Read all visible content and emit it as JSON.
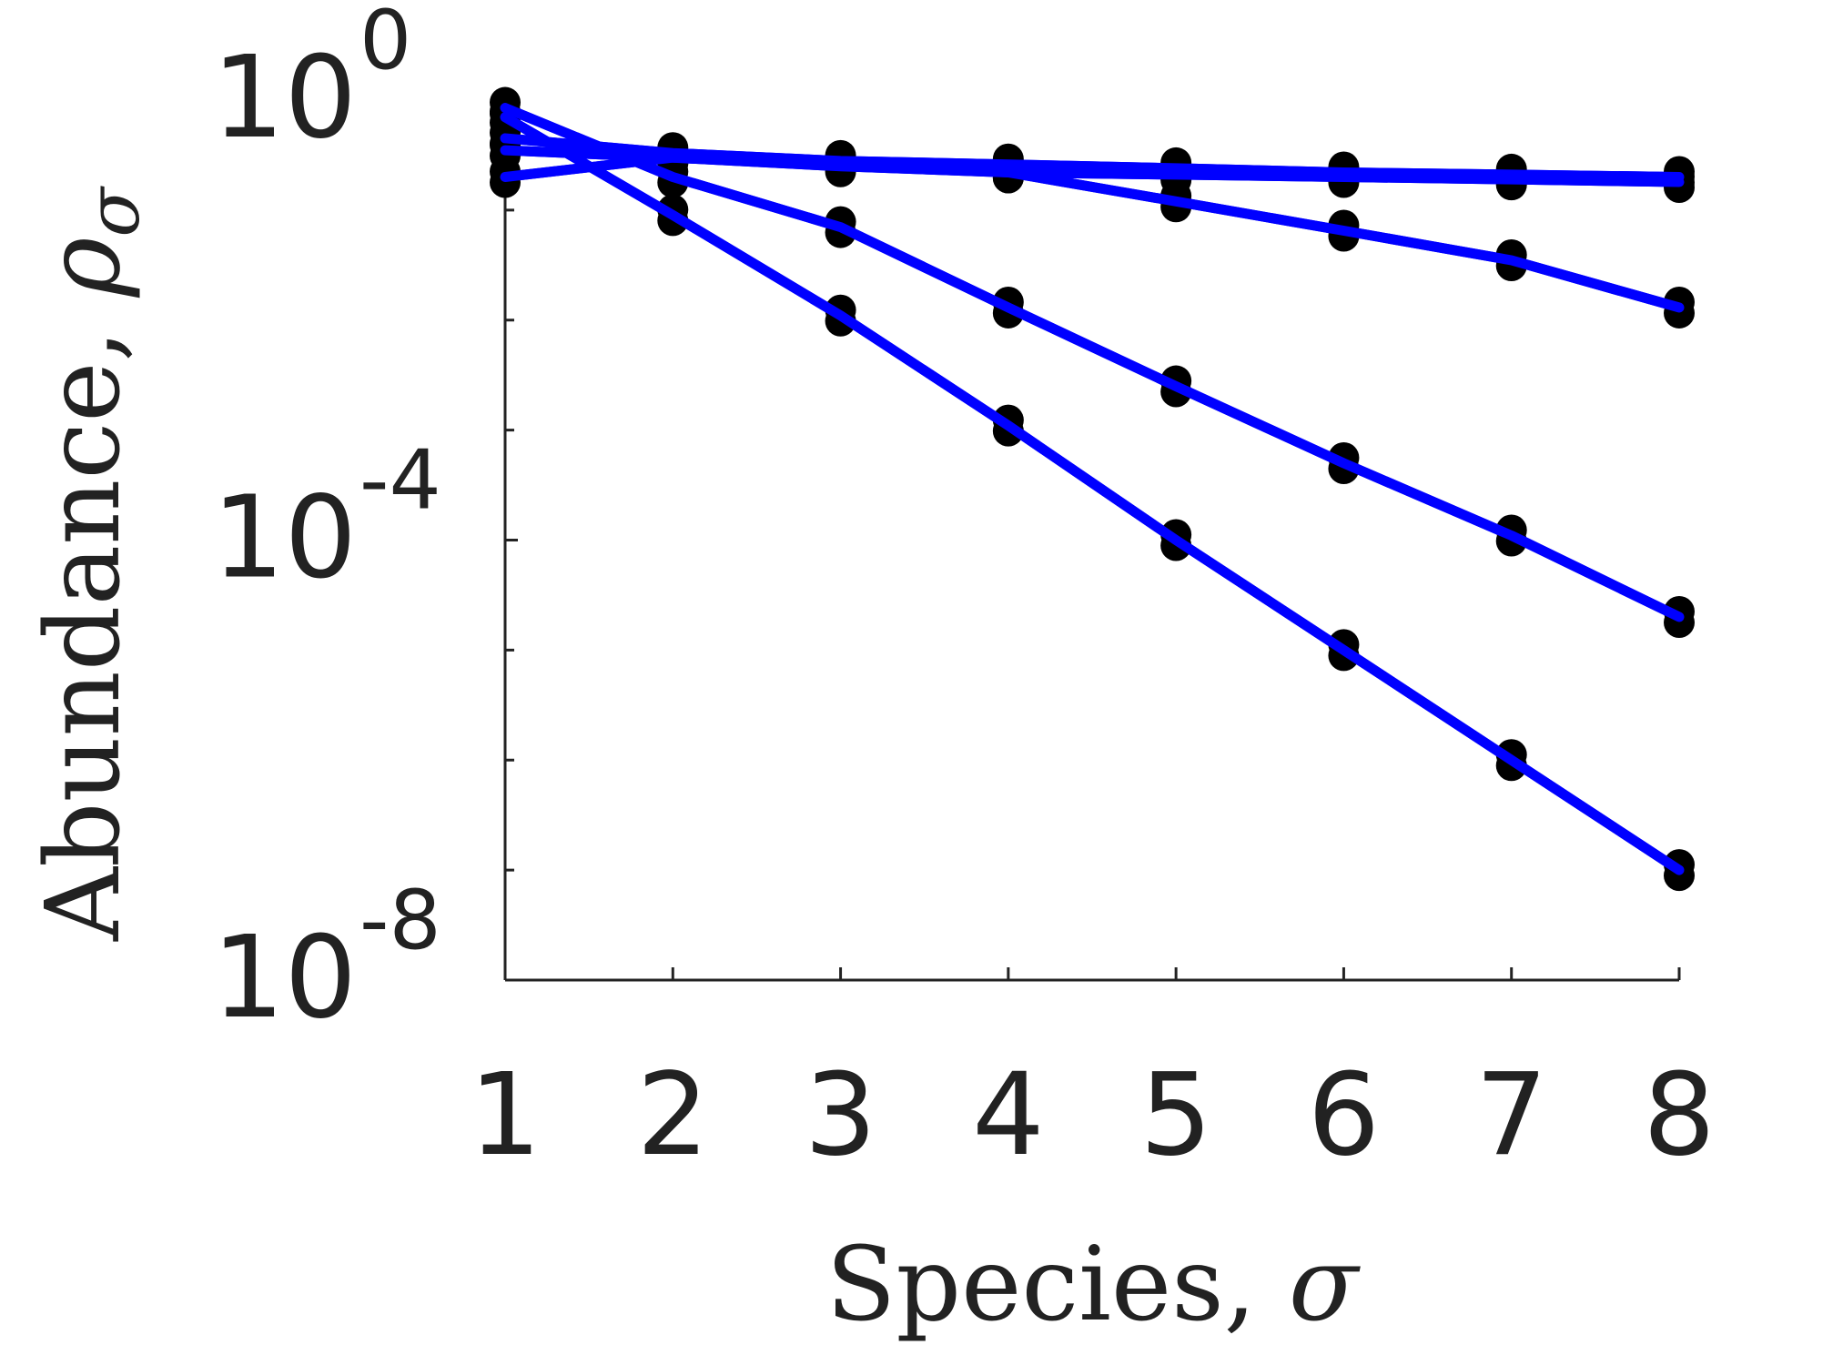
{
  "chart_data": {
    "type": "line",
    "xlabel": "Species, ",
    "xlabel_symbol": "σ",
    "ylabel": "Abundance, ",
    "ylabel_symbol": "ρ",
    "ylabel_subscript": "σ",
    "x": [
      1,
      2,
      3,
      4,
      5,
      6,
      7,
      8
    ],
    "x_tick_labels": [
      "1",
      "2",
      "3",
      "4",
      "5",
      "6",
      "7",
      "8"
    ],
    "xlim": [
      1,
      8
    ],
    "y_scale": "log",
    "ylim": [
      1e-08,
      1
    ],
    "y_ticks": [
      {
        "value": 1,
        "base": "10",
        "exp": "0"
      },
      {
        "value": 0.0001,
        "base": "10",
        "exp": "-4"
      },
      {
        "value": 1e-08,
        "base": "10",
        "exp": "-8"
      }
    ],
    "y_minor_ticks": [
      0.1,
      0.01,
      0.001,
      1e-05,
      1e-06,
      1e-07
    ],
    "grid": false,
    "legend": "none",
    "line_color": "#0000ff",
    "marker_color": "#000000",
    "series": [
      {
        "values": [
          0.45,
          0.33,
          0.28,
          0.26,
          0.24,
          0.22,
          0.21,
          0.2
        ]
      },
      {
        "values": [
          0.35,
          0.3,
          0.25,
          0.22,
          0.21,
          0.2,
          0.19,
          0.18
        ]
      },
      {
        "values": [
          0.2,
          0.3,
          0.27,
          0.22,
          0.12,
          0.065,
          0.035,
          0.013
        ]
      },
      {
        "values": [
          0.85,
          0.2,
          0.07,
          0.013,
          0.0025,
          0.0005,
          0.00011,
          2e-05
        ]
      },
      {
        "values": [
          0.7,
          0.09,
          0.011,
          0.0011,
          0.0001,
          1e-05,
          1e-06,
          1e-07
        ]
      }
    ]
  }
}
